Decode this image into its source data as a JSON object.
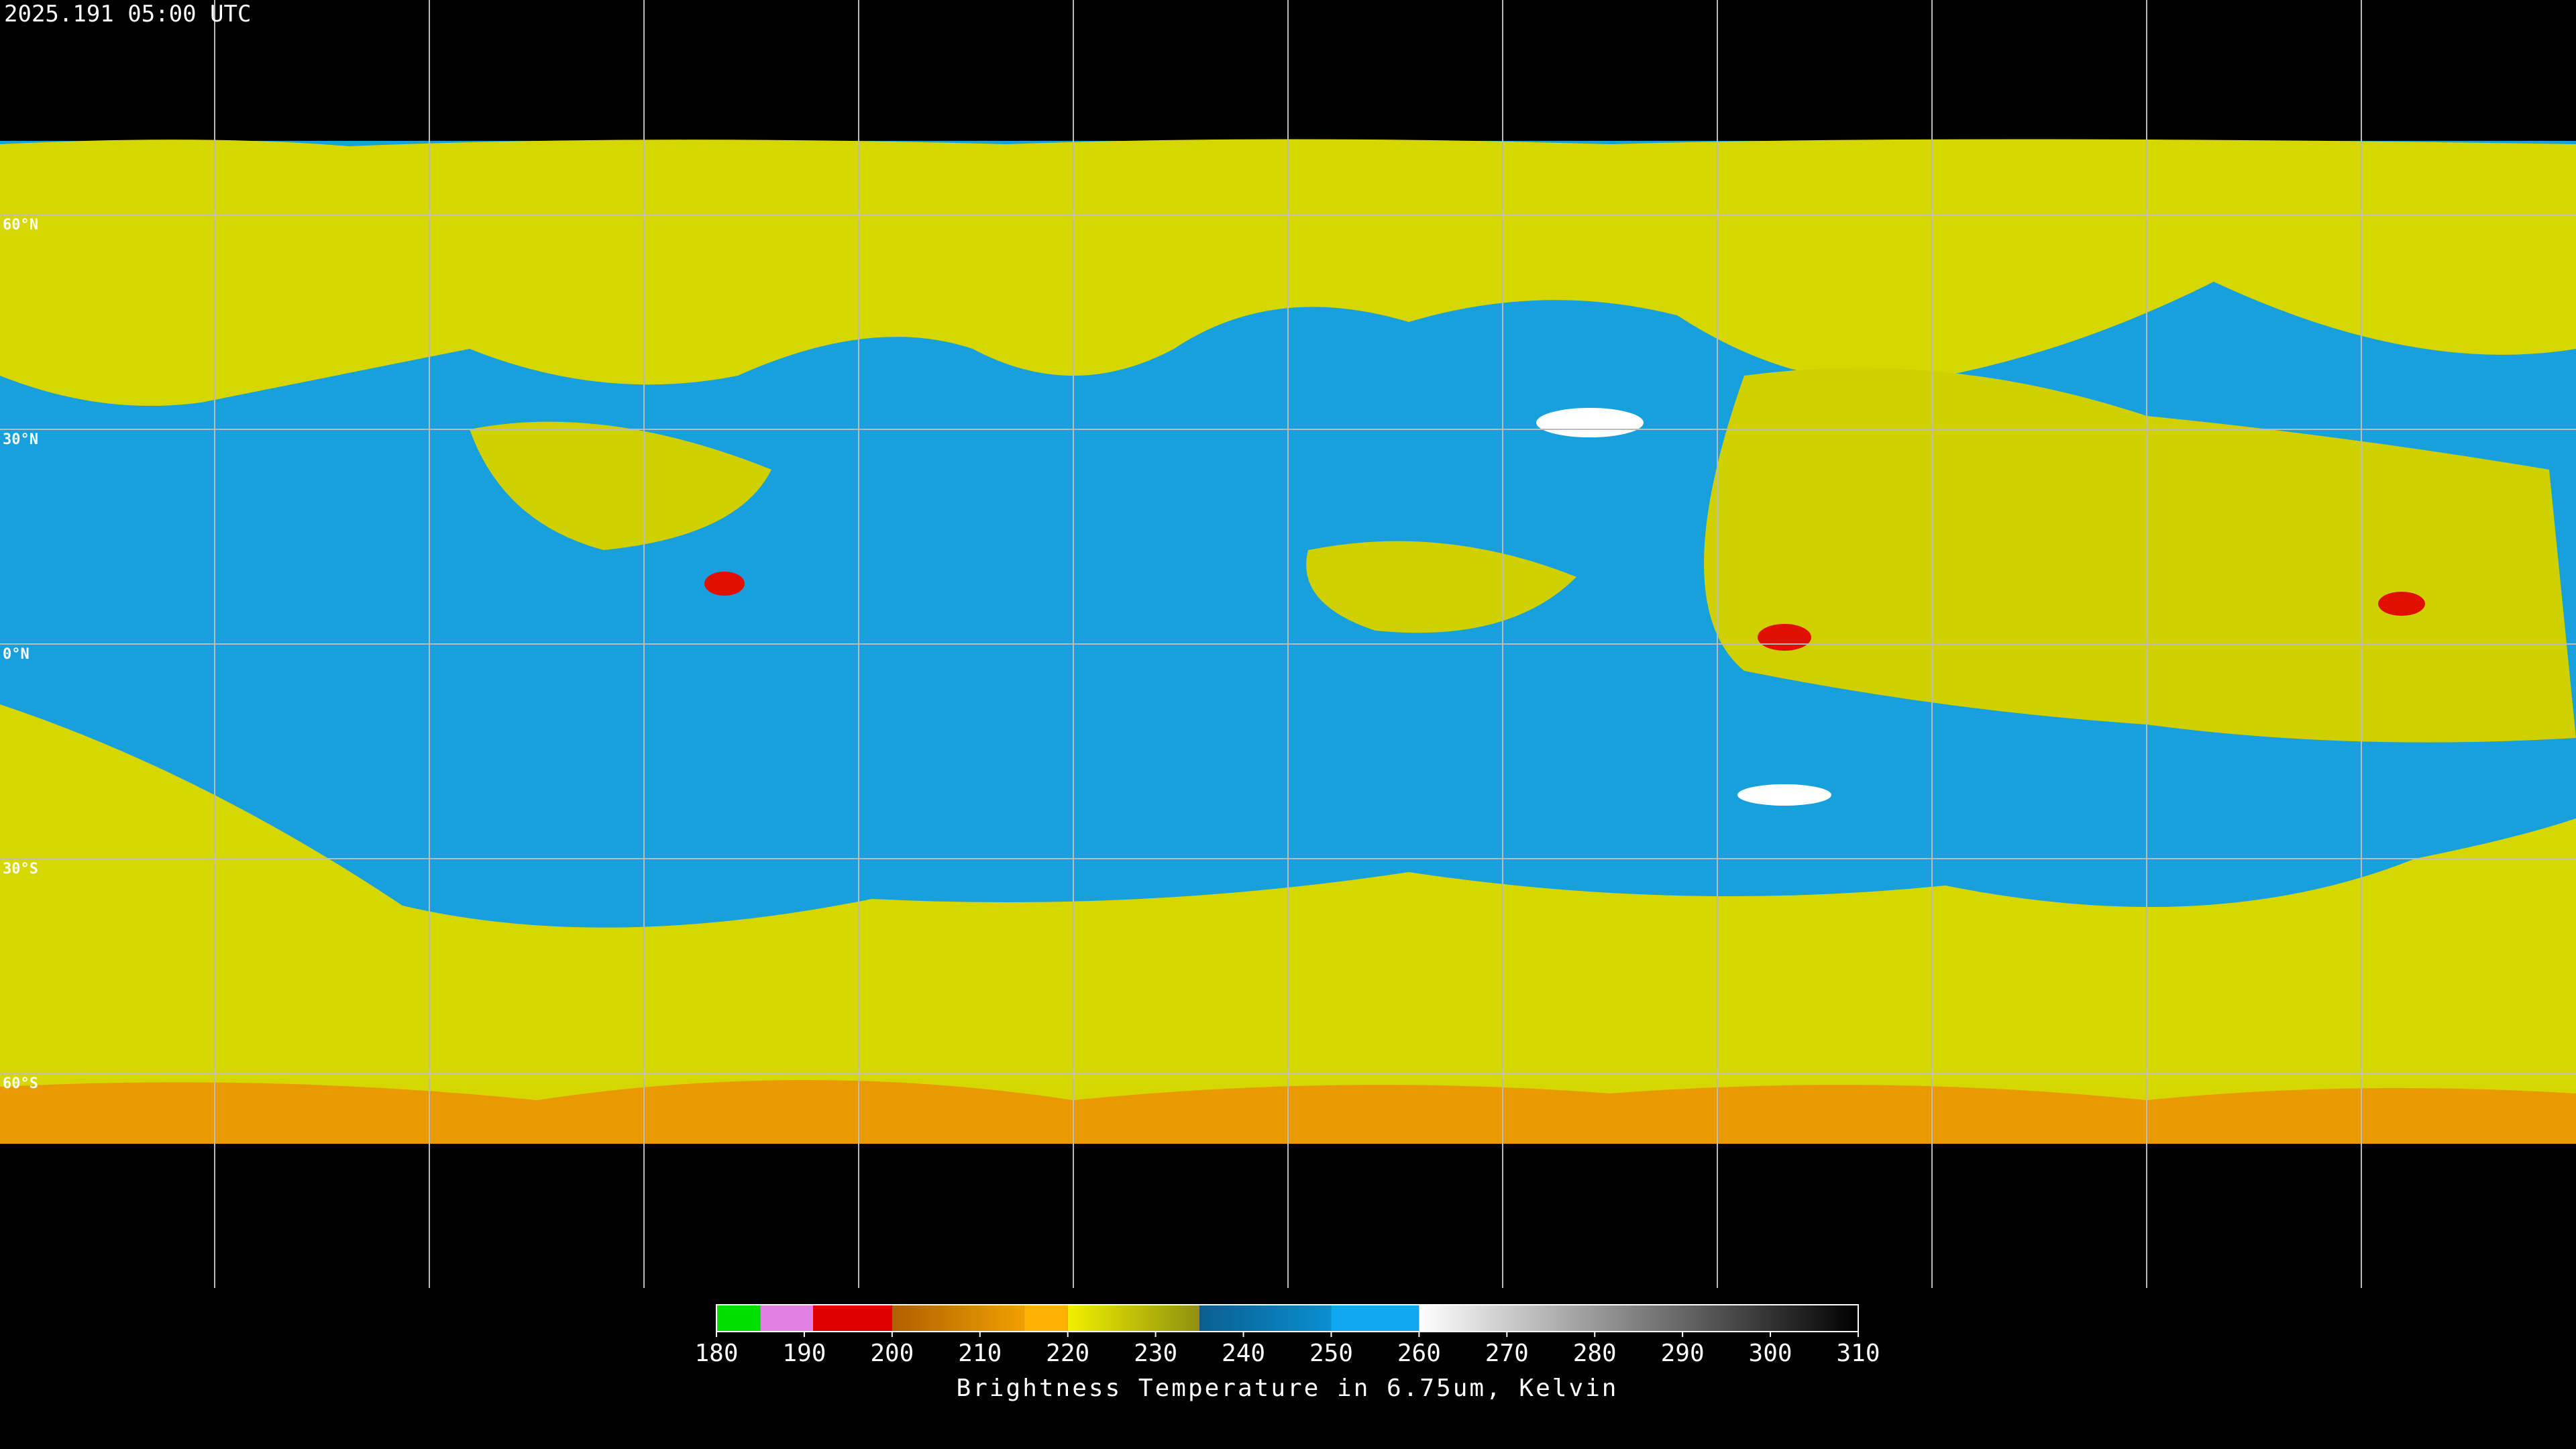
{
  "header": {
    "timestamp": "2025.191 05:00 UTC"
  },
  "map": {
    "latitudes": [
      {
        "value": 60,
        "label": "60°N"
      },
      {
        "value": 30,
        "label": "30°N"
      },
      {
        "value": 0,
        "label": "0°N"
      },
      {
        "value": -30,
        "label": "30°S"
      },
      {
        "value": -60,
        "label": "60°S"
      }
    ]
  },
  "colorbar": {
    "range": [
      180,
      310
    ],
    "ticks": [
      180,
      190,
      200,
      210,
      220,
      230,
      240,
      250,
      260,
      270,
      280,
      290,
      300,
      310
    ],
    "label": "Brightness Temperature in 6.75um, Kelvin",
    "segments": [
      {
        "from": 180,
        "to": 185,
        "colors": [
          "#00e000",
          "#00e000"
        ]
      },
      {
        "from": 185,
        "to": 191,
        "colors": [
          "#e080e0",
          "#e080e0"
        ]
      },
      {
        "from": 191,
        "to": 200,
        "colors": [
          "#e00000",
          "#e00000"
        ]
      },
      {
        "from": 200,
        "to": 215,
        "colors": [
          "#b06000",
          "#f0a000"
        ]
      },
      {
        "from": 215,
        "to": 220,
        "colors": [
          "#ffb000",
          "#ffb000"
        ]
      },
      {
        "from": 220,
        "to": 235,
        "colors": [
          "#f0f000",
          "#909010"
        ]
      },
      {
        "from": 235,
        "to": 250,
        "colors": [
          "#0a5f90",
          "#0a8fd0"
        ]
      },
      {
        "from": 250,
        "to": 260,
        "colors": [
          "#10a8f0",
          "#10a8f0"
        ]
      },
      {
        "from": 260,
        "to": 310,
        "colors": [
          "#ffffff",
          "#000000"
        ]
      }
    ]
  }
}
